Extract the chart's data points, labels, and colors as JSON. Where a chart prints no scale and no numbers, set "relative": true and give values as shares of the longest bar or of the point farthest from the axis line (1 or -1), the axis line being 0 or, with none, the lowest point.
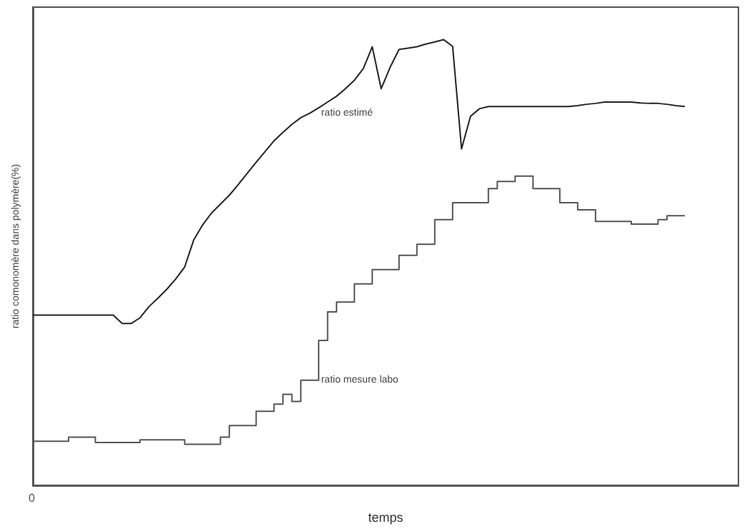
{
  "chart_data": {
    "type": "line",
    "relative": true,
    "xlabel": "temps",
    "ylabel": "ratio comonomère dans polymère(%)",
    "categories": [
      null,
      null,
      null,
      null,
      null,
      null,
      null,
      null,
      null,
      null,
      null,
      null,
      null,
      null,
      null,
      null,
      null,
      null,
      null,
      null,
      null,
      null,
      null,
      null,
      null,
      null,
      null,
      null,
      null,
      null,
      null,
      null,
      null,
      null,
      null,
      null,
      null,
      null,
      null,
      null,
      null,
      null,
      null,
      null,
      null,
      null,
      null,
      null,
      null,
      null,
      null,
      null,
      null,
      null,
      null,
      null,
      null,
      null,
      null,
      null,
      null,
      null,
      null,
      null,
      null,
      null,
      null,
      null,
      null,
      null,
      null,
      null,
      null,
      null,
      null,
      null,
      null,
      null,
      null,
      null
    ],
    "grid": false,
    "marker": "none",
    "annotations": [
      "0"
    ],
    "series": [
      {
        "name": "ratio estimé",
        "color": "#222222",
        "values": [
          0.382,
          0.382,
          0.382,
          0.382,
          0.382,
          0.382,
          0.382,
          0.382,
          0.382,
          0.382,
          0.363,
          0.363,
          0.376,
          0.401,
          0.42,
          0.44,
          0.463,
          0.49,
          0.55,
          0.584,
          0.611,
          0.631,
          0.651,
          0.675,
          0.7,
          0.725,
          0.749,
          0.773,
          0.792,
          0.81,
          0.825,
          0.835,
          0.847,
          0.86,
          0.873,
          0.89,
          0.909,
          0.935,
          0.984,
          0.89,
          0.938,
          0.978,
          0.981,
          0.984,
          0.99,
          0.995,
          1,
          0.985,
          0.755,
          0.828,
          0.845,
          0.85,
          0.85,
          0.85,
          0.85,
          0.85,
          0.85,
          0.85,
          0.85,
          0.85,
          0.85,
          0.852,
          0.855,
          0.857,
          0.86,
          0.86,
          0.86,
          0.86,
          0.858,
          0.857,
          0.857,
          0.855,
          0.852,
          0.85,
          null,
          null,
          null,
          null,
          null,
          null
        ]
      },
      {
        "name": "ratio mesure labo",
        "type": "step",
        "color": "#555555",
        "values": [
          0.099,
          0.099,
          0.099,
          0.099,
          0.099,
          0.108,
          0.108,
          0.108,
          0.096,
          0.096,
          0.096,
          0.096,
          0.096,
          0.102,
          0.102,
          0.102,
          0.102,
          0.102,
          0.092,
          0.092,
          0.092,
          0.092,
          0.108,
          0.134,
          0.134,
          0.134,
          0.166,
          0.166,
          0.182,
          0.204,
          0.188,
          0.236,
          0.236,
          0.325,
          0.389,
          0.411,
          0.411,
          0.452,
          0.452,
          0.484,
          0.484,
          0.484,
          0.516,
          0.516,
          0.541,
          0.541,
          0.596,
          0.596,
          0.634,
          0.634,
          0.634,
          0.634,
          0.666,
          0.682,
          0.682,
          0.694,
          0.694,
          0.666,
          0.666,
          0.666,
          0.634,
          0.634,
          0.618,
          0.618,
          0.592,
          0.592,
          0.592,
          0.592,
          0.586,
          0.586,
          0.586,
          0.596,
          0.605,
          0.605,
          null,
          null,
          null,
          null,
          null,
          null
        ]
      }
    ]
  }
}
